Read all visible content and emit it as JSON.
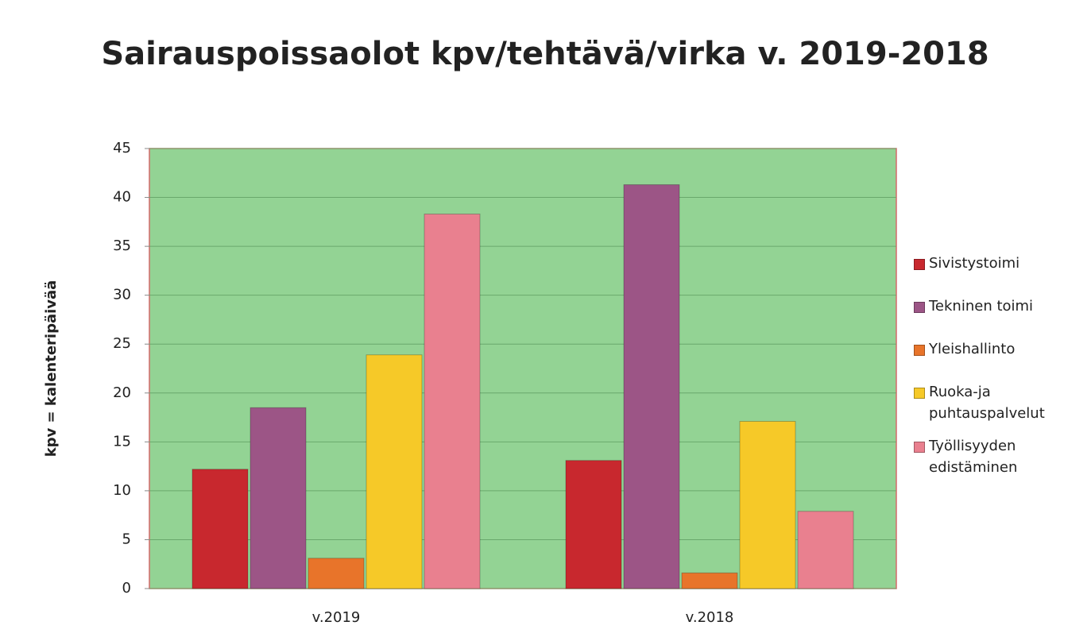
{
  "chart_data": {
    "type": "bar",
    "title": "Sairauspoissaolot kpv/tehtävä/virka v. 2019-2018",
    "y_label": "kpv = kalenteripäivää",
    "categories": [
      "v.2019",
      "v.2018"
    ],
    "series": [
      {
        "name": "Sivistystoimi",
        "color": "#c8282e",
        "values": [
          12.2,
          13.1
        ]
      },
      {
        "name": "Tekninen toimi",
        "color": "#9c5586",
        "values": [
          18.5,
          41.3
        ]
      },
      {
        "name": "Yleishallinto",
        "color": "#e8742a",
        "values": [
          3.1,
          1.6
        ]
      },
      {
        "name": "Ruoka-ja puhtauspalvelut",
        "color": "#f6c928",
        "values": [
          23.9,
          17.1
        ]
      },
      {
        "name": "Työllisyyden edistäminen",
        "color": "#e9808f",
        "values": [
          38.3,
          7.9
        ]
      }
    ],
    "ylim": [
      0,
      45
    ],
    "yticks": [
      0,
      5,
      10,
      15,
      20,
      25,
      30,
      35,
      40,
      45
    ],
    "grid": true,
    "legend": "right"
  }
}
